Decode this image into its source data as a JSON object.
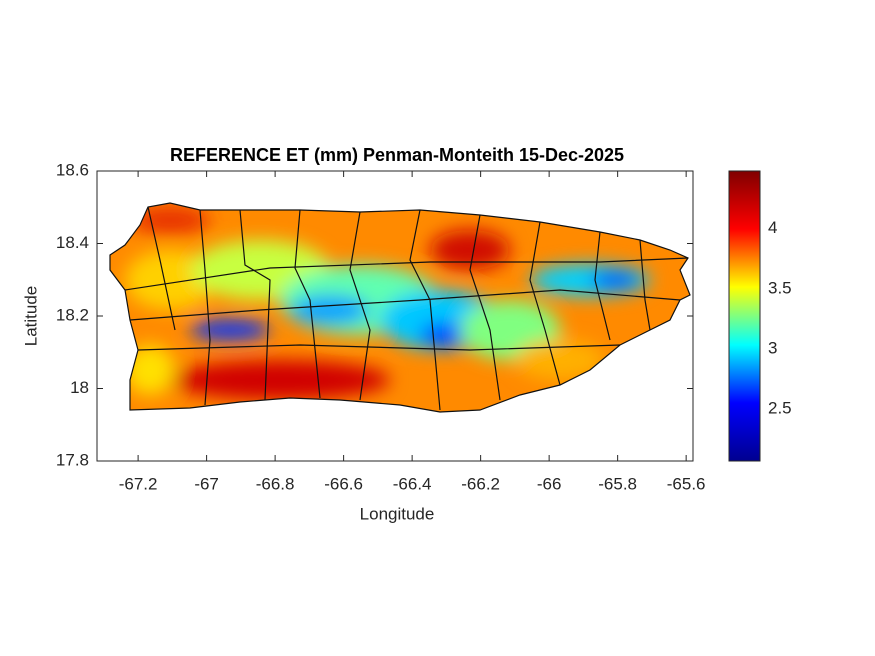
{
  "chart_data": {
    "type": "map",
    "title": "REFERENCE ET (mm) Penman-Monteith 15-Dec-2025",
    "x_label": "Longitude",
    "y_label": "Latitude",
    "xlim": [
      -67.32,
      -65.58
    ],
    "xticks": [
      -67.2,
      -67,
      -66.8,
      -66.6,
      -66.4,
      -66.2,
      -66,
      -65.8,
      -65.6
    ],
    "ylim": [
      17.8,
      18.6
    ],
    "yticks": [
      17.8,
      18,
      18.2,
      18.4,
      18.6
    ],
    "colorbar": {
      "lim": [
        2.07,
        4.48
      ],
      "ticks": [
        2.5,
        3,
        3.5,
        4
      ],
      "colormap": "jet"
    }
  }
}
